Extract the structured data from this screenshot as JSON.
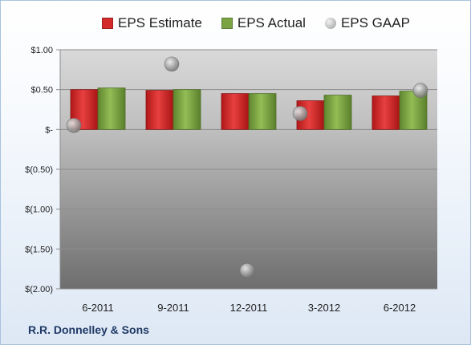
{
  "company": "R.R. Donnelley & Sons",
  "chart_data": {
    "type": "bar",
    "categories": [
      "6-2011",
      "9-2011",
      "12-2011",
      "3-2012",
      "6-2012"
    ],
    "series": [
      {
        "name": "EPS Estimate",
        "kind": "bar",
        "color": "#d42a2a",
        "values": [
          0.5,
          0.49,
          0.45,
          0.36,
          0.42
        ]
      },
      {
        "name": "EPS Actual",
        "kind": "bar",
        "color": "#7aa442",
        "values": [
          0.52,
          0.5,
          0.45,
          0.43,
          0.48
        ]
      },
      {
        "name": "EPS GAAP",
        "kind": "scatter",
        "color": "#a6a6a6",
        "values": [
          0.05,
          0.82,
          -1.77,
          0.2,
          0.49
        ]
      }
    ],
    "ylim": [
      -2.0,
      1.0
    ],
    "yticks": [
      1.0,
      0.5,
      0.0,
      -0.5,
      -1.0,
      -1.5,
      -2.0
    ],
    "ytick_labels": [
      "$1.00",
      "$0.50",
      "$-",
      "$(0.50)",
      "$(1.00)",
      "$(1.50)",
      "$(2.00)"
    ],
    "legend_position": "top",
    "grid": true
  }
}
